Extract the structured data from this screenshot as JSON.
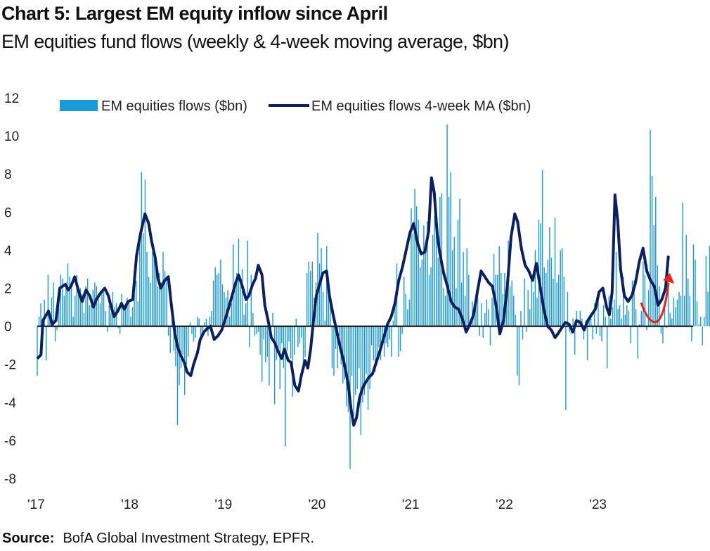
{
  "title": "Chart 5: Largest EM equity inflow since April",
  "subtitle": "EM equities fund flows (weekly & 4-week moving average, $bn)",
  "source_label": "Source:",
  "source_text": "BofA Global Investment Strategy, EPFR.",
  "colors": {
    "bars": "#1a9ad9",
    "ma_line": "#0d1f5c",
    "arrow": "#e8221c",
    "zero_line": "#000000"
  },
  "chart_data": {
    "type": "bar",
    "title": "Chart 5: Largest EM equity inflow since April",
    "xlabel": "",
    "ylabel": "",
    "ylim": [
      -8,
      12
    ],
    "yticks": [
      12,
      10,
      8,
      6,
      4,
      2,
      0,
      -2,
      -4,
      -6,
      -8
    ],
    "xlim": [
      2017.0,
      2024.0
    ],
    "xticks": [
      {
        "label": "'17",
        "x": 2017.0
      },
      {
        "label": "'18",
        "x": 2018.0
      },
      {
        "label": "'19",
        "x": 2019.0
      },
      {
        "label": "'20",
        "x": 2020.0
      },
      {
        "label": "'21",
        "x": 2021.0
      },
      {
        "label": "'22",
        "x": 2022.0
      },
      {
        "label": "'23",
        "x": 2023.0
      }
    ],
    "legend": {
      "placement": "top",
      "entries": [
        "EM equities flows ($bn)",
        "EM equities flows 4-week MA ($bn)"
      ]
    },
    "series": [
      {
        "name": "EM equities flows ($bn)",
        "kind": "bar",
        "x_start": 2017.0,
        "x_step": 0.0192,
        "values": [
          -2.6,
          0.5,
          1.2,
          -0.4,
          1.4,
          -1.8,
          2.7,
          0.6,
          1.5,
          2.3,
          -0.8,
          -0.2,
          1.8,
          2.7,
          2.5,
          1.6,
          2.3,
          3.3,
          2.6,
          2.0,
          0.5,
          1.6,
          2.7,
          1.8,
          2.0,
          1.7,
          0.7,
          2.1,
          2.5,
          1.1,
          1.1,
          1.9,
          2.3,
          2.1,
          1.5,
          1.2,
          1.7,
          1.8,
          0.8,
          -0.3,
          1.1,
          0.7,
          1.8,
          1.0,
          1.2,
          -0.1,
          -0.4,
          1.7,
          1.1,
          1.2,
          1.5,
          1.4,
          0.5,
          1.0,
          1.7,
          2.4,
          1.3,
          4.5,
          8.1,
          4.9,
          7.7,
          3.9,
          2.6,
          2.3,
          3.9,
          4.1,
          3.7,
          2.1,
          2.8,
          2.3,
          3.9,
          2.9,
          2.5,
          -0.5,
          -1.4,
          0.6,
          -1.3,
          -2.1,
          -5.2,
          -3.1,
          -2.2,
          -1.5,
          -3.6,
          -2.0,
          -1.6,
          0.2,
          -0.4,
          -0.8,
          -0.6,
          0.5,
          0.4,
          -0.7,
          -0.4,
          0.2,
          0.4,
          -0.5,
          0.5,
          0.8,
          2.4,
          3.1,
          2.7,
          2.8,
          3.5,
          2.2,
          1.8,
          1.5,
          1.9,
          0.5,
          1.2,
          4.3,
          1.9,
          2.8,
          4.6,
          2.1,
          3.0,
          0.6,
          1.2,
          4.5,
          -1.1,
          2.7,
          0.7,
          -0.5,
          -0.4,
          -0.3,
          -1.5,
          -2.9,
          -0.7,
          -1.9,
          -1.6,
          -3.1,
          -0.4,
          0.7,
          -4.1,
          -1.8,
          -1.4,
          -3.3,
          -0.9,
          -2.2,
          -6.3,
          -1.3,
          -0.8,
          -1.7,
          -3.7,
          -1.5,
          0.4,
          -1.1,
          -0.9,
          -0.6,
          -2.2,
          -1.6,
          2.8,
          3.4,
          2.9,
          3.4,
          1.5,
          2.3,
          4.9,
          3.3,
          4.1,
          1.8,
          0.3,
          4.2,
          1.9,
          1.4,
          -2.2,
          -2.6,
          -1.2,
          -2.2,
          -0.5,
          -2.0,
          -3.0,
          -2.8,
          -4.2,
          -4.5,
          -7.5,
          -2.6,
          -4.7,
          -3.6,
          -3.3,
          -2.2,
          -5.7,
          -4.0,
          -3.6,
          -2.5,
          -4.4,
          -3.3,
          -1.0,
          -1.8,
          -2.4,
          -2.0,
          -1.1,
          -1.8,
          -0.6,
          -1.6,
          -0.9,
          -1.1,
          -0.7,
          -1.6,
          0.3,
          1.3,
          3.3,
          -1.6,
          -1.3,
          -0.4,
          2.6,
          1.7,
          0.9,
          1.4,
          6.2,
          4.9,
          7.2,
          6.3,
          5.6,
          3.1,
          3.5,
          5.3,
          4.2,
          5.5,
          2.7,
          3.1,
          4.8,
          5.8,
          5.4,
          3.6,
          6.8,
          7.0,
          2.0,
          1.6,
          10.6,
          6.8,
          8.1,
          4.0,
          4.7,
          2.0,
          5.6,
          6.7,
          2.3,
          3.9,
          1.6,
          4.1,
          2.7,
          0.2,
          1.3,
          1.0,
          1.5,
          1.5,
          -0.5,
          1.2,
          -0.6,
          0.7,
          1.4,
          0.9,
          -1.0,
          1.5,
          3.8,
          2.7,
          2.7,
          4.2,
          2.8,
          1.7,
          2.8,
          1.9,
          4.5,
          2.1,
          2.4,
          1.6,
          0.6,
          -2.6,
          -3.1,
          0.8,
          -0.7,
          2.5,
          -0.3,
          1.9,
          0.9,
          2.4,
          1.8,
          4.0,
          1.5,
          5.6,
          5.4,
          8.2,
          3.1,
          2.8,
          3.5,
          5.2,
          3.6,
          2.5,
          5.7,
          2.3,
          2.7,
          4.0,
          4.1,
          2.6,
          -4.4,
          1.8,
          -0.3,
          -0.4,
          0.4,
          -1.5,
          0.8,
          0.2,
          0.8,
          0.4,
          -0.7,
          0.3,
          -1.8,
          0.5,
          0.4,
          -0.7,
          1.2,
          -0.4,
          1.6,
          -0.5,
          -0.8,
          1.1,
          0.5,
          -2.2,
          1.6,
          0.4,
          1.0,
          1.4,
          3.9,
          0.9,
          1.1,
          0.4,
          2.6,
          0.6,
          1.1,
          0.8,
          -0.9,
          2.4,
          2.4,
          0.9,
          -1.7,
          0.1,
          0.8,
          3.4,
          2.7,
          -0.2,
          1.9,
          10.3,
          7.9,
          5.3,
          6.8,
          3.2,
          2.1,
          -0.4,
          -0.9,
          1.3,
          -0.1,
          2.7,
          0.7,
          0.4,
          1.5,
          1.0,
          1.4,
          1.8,
          1.6,
          6.5,
          1.6,
          4.8,
          2.5,
          1.6,
          -0.8,
          4.3,
          3.5,
          1.3,
          0.1,
          0.5,
          -1.0,
          0.5,
          3.7,
          1.8,
          4.2,
          6.0,
          1.3
        ]
      },
      {
        "name": "EM equities flows 4-week MA ($bn)",
        "kind": "line",
        "points": [
          [
            2017.0,
            -1.7
          ],
          [
            2017.04,
            -1.5
          ],
          [
            2017.06,
            0.3
          ],
          [
            2017.12,
            0.8
          ],
          [
            2017.16,
            0.1
          ],
          [
            2017.2,
            0.3
          ],
          [
            2017.24,
            2.0
          ],
          [
            2017.3,
            2.2
          ],
          [
            2017.33,
            1.9
          ],
          [
            2017.36,
            2.1
          ],
          [
            2017.4,
            2.6
          ],
          [
            2017.45,
            1.7
          ],
          [
            2017.48,
            1.3
          ],
          [
            2017.52,
            1.9
          ],
          [
            2017.56,
            1.6
          ],
          [
            2017.6,
            1.0
          ],
          [
            2017.63,
            1.4
          ],
          [
            2017.67,
            1.7
          ],
          [
            2017.72,
            2.0
          ],
          [
            2017.76,
            1.6
          ],
          [
            2017.78,
            1.2
          ],
          [
            2017.82,
            0.5
          ],
          [
            2017.86,
            0.8
          ],
          [
            2017.9,
            1.2
          ],
          [
            2017.93,
            0.9
          ],
          [
            2017.97,
            1.3
          ],
          [
            2018.02,
            1.4
          ],
          [
            2018.06,
            3.7
          ],
          [
            2018.1,
            4.8
          ],
          [
            2018.15,
            5.9
          ],
          [
            2018.19,
            5.4
          ],
          [
            2018.22,
            4.5
          ],
          [
            2018.26,
            3.6
          ],
          [
            2018.29,
            2.5
          ],
          [
            2018.32,
            2.0
          ],
          [
            2018.36,
            2.4
          ],
          [
            2018.4,
            2.6
          ],
          [
            2018.43,
            1.2
          ],
          [
            2018.47,
            -0.4
          ],
          [
            2018.5,
            -1.1
          ],
          [
            2018.53,
            -1.5
          ],
          [
            2018.57,
            -1.9
          ],
          [
            2018.6,
            -2.4
          ],
          [
            2018.64,
            -2.6
          ],
          [
            2018.67,
            -2.0
          ],
          [
            2018.71,
            -1.4
          ],
          [
            2018.74,
            -0.7
          ],
          [
            2018.78,
            -0.3
          ],
          [
            2018.82,
            -0.1
          ],
          [
            2018.85,
            0.0
          ],
          [
            2018.89,
            -0.7
          ],
          [
            2018.93,
            -0.5
          ],
          [
            2018.97,
            -0.2
          ],
          [
            2019.01,
            0.4
          ],
          [
            2019.04,
            0.9
          ],
          [
            2019.08,
            1.6
          ],
          [
            2019.12,
            2.3
          ],
          [
            2019.15,
            2.7
          ],
          [
            2019.19,
            2.1
          ],
          [
            2019.23,
            1.4
          ],
          [
            2019.26,
            1.6
          ],
          [
            2019.3,
            2.2
          ],
          [
            2019.33,
            2.5
          ],
          [
            2019.36,
            3.2
          ],
          [
            2019.4,
            2.7
          ],
          [
            2019.43,
            1.1
          ],
          [
            2019.47,
            0.2
          ],
          [
            2019.5,
            -0.6
          ],
          [
            2019.54,
            -0.9
          ],
          [
            2019.57,
            -1.3
          ],
          [
            2019.61,
            -1.7
          ],
          [
            2019.64,
            -1.2
          ],
          [
            2019.68,
            -1.8
          ],
          [
            2019.71,
            -1.9
          ],
          [
            2019.75,
            -3.1
          ],
          [
            2019.79,
            -3.4
          ],
          [
            2019.82,
            -2.6
          ],
          [
            2019.86,
            -1.8
          ],
          [
            2019.89,
            -2.2
          ],
          [
            2019.92,
            -1.2
          ],
          [
            2019.95,
            0.3
          ],
          [
            2019.98,
            1.6
          ],
          [
            2020.02,
            2.3
          ],
          [
            2020.05,
            2.8
          ],
          [
            2020.09,
            2.9
          ],
          [
            2020.12,
            1.6
          ],
          [
            2020.16,
            0.6
          ],
          [
            2020.2,
            -0.3
          ],
          [
            2020.24,
            -1.2
          ],
          [
            2020.28,
            -2.0
          ],
          [
            2020.32,
            -3.0
          ],
          [
            2020.35,
            -4.3
          ],
          [
            2020.38,
            -5.2
          ],
          [
            2020.41,
            -4.8
          ],
          [
            2020.44,
            -3.8
          ],
          [
            2020.47,
            -3.3
          ],
          [
            2020.5,
            -3.0
          ],
          [
            2020.54,
            -2.7
          ],
          [
            2020.58,
            -2.5
          ],
          [
            2020.62,
            -1.9
          ],
          [
            2020.66,
            -1.3
          ],
          [
            2020.7,
            -0.6
          ],
          [
            2020.74,
            0.1
          ],
          [
            2020.78,
            0.5
          ],
          [
            2020.82,
            1.2
          ],
          [
            2020.86,
            2.4
          ],
          [
            2020.9,
            3.1
          ],
          [
            2020.94,
            4.0
          ],
          [
            2020.98,
            4.9
          ],
          [
            2021.02,
            5.4
          ],
          [
            2021.06,
            4.4
          ],
          [
            2021.1,
            3.8
          ],
          [
            2021.14,
            3.9
          ],
          [
            2021.18,
            5.0
          ],
          [
            2021.21,
            7.8
          ],
          [
            2021.24,
            7.0
          ],
          [
            2021.27,
            4.9
          ],
          [
            2021.3,
            3.8
          ],
          [
            2021.34,
            2.8
          ],
          [
            2021.38,
            2.1
          ],
          [
            2021.42,
            1.3
          ],
          [
            2021.46,
            1.0
          ],
          [
            2021.5,
            0.9
          ],
          [
            2021.54,
            0.4
          ],
          [
            2021.58,
            -0.3
          ],
          [
            2021.62,
            0.1
          ],
          [
            2021.66,
            0.6
          ],
          [
            2021.7,
            1.8
          ],
          [
            2021.74,
            2.9
          ],
          [
            2021.78,
            2.6
          ],
          [
            2021.82,
            2.3
          ],
          [
            2021.86,
            2.1
          ],
          [
            2021.9,
            1.1
          ],
          [
            2021.94,
            -0.4
          ],
          [
            2021.98,
            0.3
          ],
          [
            2022.02,
            2.1
          ],
          [
            2022.06,
            4.7
          ],
          [
            2022.1,
            5.9
          ],
          [
            2022.13,
            5.5
          ],
          [
            2022.17,
            4.1
          ],
          [
            2022.21,
            3.2
          ],
          [
            2022.25,
            2.9
          ],
          [
            2022.29,
            2.4
          ],
          [
            2022.33,
            3.3
          ],
          [
            2022.37,
            2.1
          ],
          [
            2022.41,
            0.9
          ],
          [
            2022.45,
            0.0
          ],
          [
            2022.49,
            -0.2
          ],
          [
            2022.53,
            -0.6
          ],
          [
            2022.56,
            -0.4
          ],
          [
            2022.6,
            -0.1
          ],
          [
            2022.64,
            0.2
          ],
          [
            2022.68,
            0.1
          ],
          [
            2022.72,
            -0.3
          ],
          [
            2022.76,
            0.3
          ],
          [
            2022.8,
            0.2
          ],
          [
            2022.84,
            -0.2
          ],
          [
            2022.88,
            0.3
          ],
          [
            2022.92,
            0.6
          ],
          [
            2022.96,
            0.9
          ],
          [
            2023.0,
            1.8
          ],
          [
            2023.04,
            2.0
          ],
          [
            2023.08,
            1.0
          ],
          [
            2023.11,
            0.6
          ],
          [
            2023.14,
            1.8
          ],
          [
            2023.17,
            6.9
          ],
          [
            2023.2,
            5.5
          ],
          [
            2023.23,
            3.0
          ],
          [
            2023.27,
            1.6
          ],
          [
            2023.31,
            1.3
          ],
          [
            2023.35,
            1.6
          ],
          [
            2023.39,
            2.3
          ],
          [
            2023.43,
            3.4
          ],
          [
            2023.47,
            4.1
          ],
          [
            2023.51,
            2.9
          ],
          [
            2023.55,
            2.4
          ],
          [
            2023.59,
            2.1
          ],
          [
            2023.63,
            1.1
          ],
          [
            2023.67,
            1.4
          ],
          [
            2023.71,
            2.0
          ],
          [
            2023.74,
            3.7
          ]
        ]
      }
    ],
    "annotation": "red-curved-arrow"
  }
}
